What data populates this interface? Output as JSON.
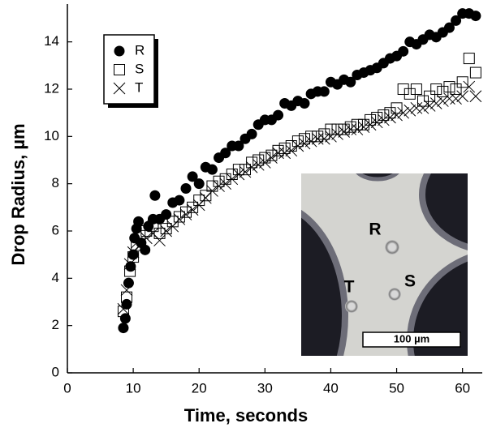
{
  "chart_data": {
    "type": "scatter",
    "xlabel": "Time, seconds",
    "ylabel": "Drop Radius, µm",
    "xlim": [
      0,
      63
    ],
    "xticks": [
      0,
      10,
      20,
      30,
      40,
      50,
      60
    ],
    "ylim": [
      0,
      15.6
    ],
    "yticks": [
      0,
      2,
      4,
      6,
      8,
      10,
      12,
      14
    ],
    "legend": "upper left",
    "series": [
      {
        "name": "R",
        "marker": "filled-circle",
        "color": "#000000",
        "x": [
          8.5,
          8.8,
          9,
          9.3,
          9.6,
          10,
          10.2,
          10.5,
          10.8,
          11.2,
          11.8,
          12.3,
          13,
          13.3,
          14,
          15,
          16,
          17,
          18,
          19,
          20,
          21,
          22,
          23,
          24,
          25,
          26,
          27,
          28,
          29,
          30,
          31,
          32,
          33,
          34,
          35,
          36,
          37,
          38,
          39,
          40,
          41,
          42,
          43,
          44,
          45,
          46,
          47,
          48,
          49,
          50,
          51,
          52,
          53,
          54,
          55,
          56,
          57,
          58,
          59,
          60,
          61,
          62
        ],
        "values": [
          1.9,
          2.3,
          2.9,
          3.8,
          4.5,
          5.0,
          5.7,
          6.1,
          6.4,
          5.5,
          5.2,
          6.2,
          6.5,
          7.5,
          6.5,
          6.7,
          7.2,
          7.3,
          7.8,
          8.3,
          8.0,
          8.7,
          8.6,
          9.1,
          9.3,
          9.6,
          9.6,
          9.9,
          10.1,
          10.5,
          10.7,
          10.7,
          10.9,
          11.4,
          11.3,
          11.5,
          11.4,
          11.8,
          11.9,
          11.9,
          12.3,
          12.2,
          12.4,
          12.3,
          12.6,
          12.7,
          12.8,
          12.9,
          13.1,
          13.3,
          13.4,
          13.6,
          14.0,
          13.9,
          14.1,
          14.3,
          14.2,
          14.4,
          14.6,
          14.9,
          15.2,
          15.2,
          15.1
        ]
      },
      {
        "name": "S",
        "marker": "open-square",
        "color": "#000000",
        "x": [
          8.5,
          9,
          9.5,
          10,
          10.5,
          11,
          12,
          13,
          14,
          15,
          16,
          17,
          18,
          19,
          20,
          21,
          22,
          23,
          24,
          25,
          26,
          27,
          28,
          29,
          30,
          31,
          32,
          33,
          34,
          35,
          36,
          37,
          38,
          39,
          40,
          41,
          42,
          43,
          44,
          45,
          46,
          47,
          48,
          49,
          50,
          51,
          52,
          53,
          54,
          55,
          56,
          57,
          58,
          59,
          60,
          61,
          62
        ],
        "values": [
          2.6,
          3.2,
          4.3,
          4.9,
          5.4,
          5.8,
          6.0,
          6.2,
          5.9,
          6.1,
          6.4,
          6.6,
          6.8,
          7.0,
          7.3,
          7.5,
          7.9,
          8.1,
          8.2,
          8.4,
          8.6,
          8.6,
          8.9,
          9.0,
          9.1,
          9.2,
          9.4,
          9.5,
          9.6,
          9.8,
          9.9,
          10.0,
          10.0,
          10.1,
          10.3,
          10.3,
          10.3,
          10.4,
          10.5,
          10.5,
          10.7,
          10.8,
          10.9,
          11.0,
          11.2,
          12.0,
          11.8,
          12.0,
          11.5,
          11.7,
          12.0,
          11.9,
          12.1,
          12.0,
          12.3,
          13.3,
          12.7
        ]
      },
      {
        "name": "T",
        "marker": "cross",
        "color": "#000000",
        "x": [
          8.5,
          9,
          9.5,
          10,
          10.5,
          11,
          12,
          13,
          14,
          15,
          16,
          17,
          18,
          19,
          20,
          21,
          22,
          23,
          24,
          25,
          26,
          27,
          28,
          29,
          30,
          31,
          32,
          33,
          34,
          35,
          36,
          37,
          38,
          39,
          40,
          41,
          42,
          43,
          44,
          45,
          46,
          47,
          48,
          49,
          50,
          51,
          52,
          53,
          54,
          55,
          56,
          57,
          58,
          59,
          60,
          61,
          62
        ],
        "values": [
          2.7,
          3.5,
          4.6,
          5.1,
          5.5,
          5.4,
          5.7,
          5.9,
          5.6,
          6.0,
          6.2,
          6.5,
          6.7,
          6.9,
          7.1,
          7.4,
          7.7,
          7.9,
          8.0,
          8.2,
          8.4,
          8.5,
          8.7,
          8.8,
          8.9,
          9.1,
          9.3,
          9.3,
          9.4,
          9.6,
          9.7,
          9.8,
          9.9,
          9.9,
          10.0,
          10.1,
          10.2,
          10.3,
          10.3,
          10.4,
          10.5,
          10.6,
          10.7,
          10.8,
          10.9,
          11.0,
          11.1,
          11.2,
          11.2,
          11.3,
          11.4,
          11.5,
          11.6,
          11.6,
          11.7,
          12.1,
          11.7
        ]
      }
    ],
    "inset": {
      "labels": [
        "R",
        "S",
        "T"
      ],
      "scale_bar": "100 µm"
    }
  }
}
